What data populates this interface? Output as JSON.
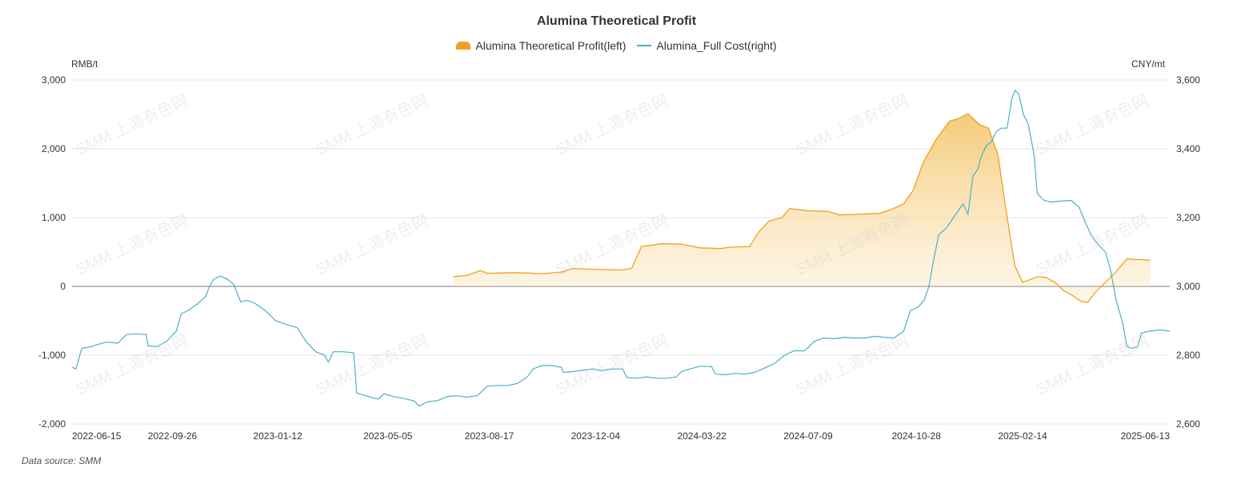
{
  "chart_data": {
    "type": "line",
    "title": "Alumina Theoretical Profit",
    "left_axis_unit": "RMB/t",
    "right_axis_unit": "CNY/mt",
    "left_ylim": [
      -2000,
      3000
    ],
    "right_ylim": [
      2600,
      3600
    ],
    "left_ticks": [
      "3,000",
      "2,000",
      "1,000",
      "0",
      "-1,000",
      "-2,000"
    ],
    "right_ticks": [
      "3,600",
      "3,400",
      "3,200",
      "3,000",
      "2,800",
      "2,600"
    ],
    "x_ticks": [
      "2022-06-15",
      "2022-09-26",
      "2023-01-12",
      "2023-05-05",
      "2023-08-17",
      "2023-12-04",
      "2024-03-22",
      "2024-07-09",
      "2024-10-28",
      "2025-02-14",
      "2025-06-13"
    ],
    "x_range": [
      "2022-06-15",
      "2025-07-15"
    ],
    "grid": true,
    "legend_position": "top-center",
    "series": [
      {
        "name": "Alumina Theoretical Profit(left)",
        "axis": "left",
        "style": "area",
        "color": "#f0a020",
        "points": [
          [
            "2023-07-11",
            140
          ],
          [
            "2023-07-25",
            160
          ],
          [
            "2023-08-08",
            230
          ],
          [
            "2023-08-15",
            190
          ],
          [
            "2023-09-15",
            200
          ],
          [
            "2023-10-11",
            185
          ],
          [
            "2023-10-31",
            210
          ],
          [
            "2023-11-10",
            260
          ],
          [
            "2023-12-08",
            245
          ],
          [
            "2024-01-01",
            240
          ],
          [
            "2024-01-10",
            260
          ],
          [
            "2024-01-20",
            580
          ],
          [
            "2024-02-10",
            620
          ],
          [
            "2024-03-01",
            615
          ],
          [
            "2024-03-20",
            560
          ],
          [
            "2024-04-10",
            550
          ],
          [
            "2024-04-20",
            570
          ],
          [
            "2024-05-10",
            580
          ],
          [
            "2024-05-20",
            800
          ],
          [
            "2024-05-30",
            950
          ],
          [
            "2024-06-12",
            1000
          ],
          [
            "2024-06-20",
            1130
          ],
          [
            "2024-07-09",
            1100
          ],
          [
            "2024-07-30",
            1090
          ],
          [
            "2024-08-10",
            1040
          ],
          [
            "2024-09-01",
            1050
          ],
          [
            "2024-09-20",
            1060
          ],
          [
            "2024-10-01",
            1110
          ],
          [
            "2024-10-15",
            1200
          ],
          [
            "2024-10-25",
            1400
          ],
          [
            "2024-11-04",
            1800
          ],
          [
            "2024-11-18",
            2150
          ],
          [
            "2024-12-01",
            2400
          ],
          [
            "2024-12-10",
            2440
          ],
          [
            "2024-12-20",
            2510
          ],
          [
            "2025-01-01",
            2350
          ],
          [
            "2025-01-10",
            2300
          ],
          [
            "2025-01-20",
            1900
          ],
          [
            "2025-01-27",
            1200
          ],
          [
            "2025-02-06",
            300
          ],
          [
            "2025-02-14",
            60
          ],
          [
            "2025-02-20",
            90
          ],
          [
            "2025-03-01",
            140
          ],
          [
            "2025-03-10",
            130
          ],
          [
            "2025-03-20",
            50
          ],
          [
            "2025-03-28",
            -60
          ],
          [
            "2025-04-05",
            -120
          ],
          [
            "2025-04-15",
            -220
          ],
          [
            "2025-04-22",
            -230
          ],
          [
            "2025-04-30",
            -80
          ],
          [
            "2025-05-10",
            60
          ],
          [
            "2025-05-20",
            200
          ],
          [
            "2025-06-01",
            400
          ],
          [
            "2025-06-13",
            390
          ],
          [
            "2025-06-25",
            380
          ]
        ]
      },
      {
        "name": "Alumina_Full Cost(right)",
        "axis": "right",
        "style": "line",
        "color": "#4ab0c8",
        "points": [
          [
            "2022-06-15",
            2765
          ],
          [
            "2022-06-19",
            2760
          ],
          [
            "2022-06-25",
            2820
          ],
          [
            "2022-07-05",
            2825
          ],
          [
            "2022-07-10",
            2830
          ],
          [
            "2022-07-20",
            2838
          ],
          [
            "2022-08-01",
            2835
          ],
          [
            "2022-08-10",
            2860
          ],
          [
            "2022-08-20",
            2862
          ],
          [
            "2022-08-30",
            2860
          ],
          [
            "2022-09-01",
            2827
          ],
          [
            "2022-09-10",
            2825
          ],
          [
            "2022-09-20",
            2840
          ],
          [
            "2022-09-30",
            2870
          ],
          [
            "2022-10-05",
            2920
          ],
          [
            "2022-10-12",
            2930
          ],
          [
            "2022-10-22",
            2950
          ],
          [
            "2022-10-30",
            2970
          ],
          [
            "2022-11-03",
            3000
          ],
          [
            "2022-11-07",
            3020
          ],
          [
            "2022-11-14",
            3030
          ],
          [
            "2022-11-22",
            3020
          ],
          [
            "2022-11-28",
            3005
          ],
          [
            "2022-12-05",
            2955
          ],
          [
            "2022-12-12",
            2960
          ],
          [
            "2022-12-20",
            2950
          ],
          [
            "2022-12-30",
            2930
          ],
          [
            "2023-01-10",
            2900
          ],
          [
            "2023-01-20",
            2890
          ],
          [
            "2023-02-01",
            2880
          ],
          [
            "2023-02-10",
            2840
          ],
          [
            "2023-02-20",
            2810
          ],
          [
            "2023-03-01",
            2800
          ],
          [
            "2023-03-05",
            2780
          ],
          [
            "2023-03-10",
            2810
          ],
          [
            "2023-03-20",
            2810
          ],
          [
            "2023-03-31",
            2807
          ],
          [
            "2023-04-03",
            2690
          ],
          [
            "2023-04-15",
            2680
          ],
          [
            "2023-04-25",
            2672
          ],
          [
            "2023-05-01",
            2688
          ],
          [
            "2023-05-10",
            2680
          ],
          [
            "2023-05-20",
            2675
          ],
          [
            "2023-06-01",
            2667
          ],
          [
            "2023-06-06",
            2652
          ],
          [
            "2023-06-15",
            2665
          ],
          [
            "2023-06-25",
            2668
          ],
          [
            "2023-07-05",
            2680
          ],
          [
            "2023-07-15",
            2682
          ],
          [
            "2023-07-25",
            2678
          ],
          [
            "2023-08-05",
            2683
          ],
          [
            "2023-08-15",
            2710
          ],
          [
            "2023-08-25",
            2712
          ],
          [
            "2023-09-05",
            2712
          ],
          [
            "2023-09-15",
            2718
          ],
          [
            "2023-09-25",
            2737
          ],
          [
            "2023-10-01",
            2760
          ],
          [
            "2023-10-10",
            2770
          ],
          [
            "2023-10-20",
            2770
          ],
          [
            "2023-10-30",
            2765
          ],
          [
            "2023-11-01",
            2750
          ],
          [
            "2023-11-10",
            2752
          ],
          [
            "2023-11-20",
            2756
          ],
          [
            "2023-12-01",
            2760
          ],
          [
            "2023-12-10",
            2755
          ],
          [
            "2023-12-20",
            2760
          ],
          [
            "2024-01-01",
            2760
          ],
          [
            "2024-01-05",
            2735
          ],
          [
            "2024-01-15",
            2733
          ],
          [
            "2024-01-25",
            2737
          ],
          [
            "2024-02-05",
            2733
          ],
          [
            "2024-02-15",
            2733
          ],
          [
            "2024-02-25",
            2737
          ],
          [
            "2024-03-01",
            2752
          ],
          [
            "2024-03-10",
            2760
          ],
          [
            "2024-03-20",
            2768
          ],
          [
            "2024-04-01",
            2767
          ],
          [
            "2024-04-05",
            2745
          ],
          [
            "2024-04-15",
            2743
          ],
          [
            "2024-04-25",
            2747
          ],
          [
            "2024-05-05",
            2745
          ],
          [
            "2024-05-15",
            2750
          ],
          [
            "2024-05-25",
            2762
          ],
          [
            "2024-06-05",
            2777
          ],
          [
            "2024-06-15",
            2800
          ],
          [
            "2024-06-25",
            2813
          ],
          [
            "2024-07-05",
            2812
          ],
          [
            "2024-07-10",
            2825
          ],
          [
            "2024-07-15",
            2840
          ],
          [
            "2024-07-25",
            2850
          ],
          [
            "2024-08-05",
            2848
          ],
          [
            "2024-08-15",
            2852
          ],
          [
            "2024-08-25",
            2850
          ],
          [
            "2024-09-05",
            2850
          ],
          [
            "2024-09-15",
            2855
          ],
          [
            "2024-09-25",
            2852
          ],
          [
            "2024-10-05",
            2850
          ],
          [
            "2024-10-15",
            2870
          ],
          [
            "2024-10-22",
            2930
          ],
          [
            "2024-10-30",
            2940
          ],
          [
            "2024-11-05",
            2960
          ],
          [
            "2024-11-10",
            3000
          ],
          [
            "2024-11-15",
            3080
          ],
          [
            "2024-11-20",
            3150
          ],
          [
            "2024-11-28",
            3170
          ],
          [
            "2024-12-05",
            3200
          ],
          [
            "2024-12-10",
            3220
          ],
          [
            "2024-12-15",
            3240
          ],
          [
            "2024-12-20",
            3210
          ],
          [
            "2024-12-25",
            3320
          ],
          [
            "2024-12-30",
            3340
          ],
          [
            "2025-01-03",
            3380
          ],
          [
            "2025-01-08",
            3410
          ],
          [
            "2025-01-13",
            3420
          ],
          [
            "2025-01-18",
            3450
          ],
          [
            "2025-01-23",
            3460
          ],
          [
            "2025-01-29",
            3460
          ],
          [
            "2025-02-01",
            3510
          ],
          [
            "2025-02-03",
            3545
          ],
          [
            "2025-02-06",
            3570
          ],
          [
            "2025-02-10",
            3560
          ],
          [
            "2025-02-15",
            3500
          ],
          [
            "2025-02-20",
            3470
          ],
          [
            "2025-02-26",
            3380
          ],
          [
            "2025-03-01",
            3270
          ],
          [
            "2025-03-08",
            3250
          ],
          [
            "2025-03-15",
            3245
          ],
          [
            "2025-03-25",
            3248
          ],
          [
            "2025-04-05",
            3250
          ],
          [
            "2025-04-13",
            3230
          ],
          [
            "2025-04-18",
            3195
          ],
          [
            "2025-04-25",
            3150
          ],
          [
            "2025-05-03",
            3120
          ],
          [
            "2025-05-10",
            3100
          ],
          [
            "2025-05-15",
            3050
          ],
          [
            "2025-05-21",
            2960
          ],
          [
            "2025-05-28",
            2890
          ],
          [
            "2025-06-01",
            2825
          ],
          [
            "2025-06-07",
            2820
          ],
          [
            "2025-06-12",
            2825
          ],
          [
            "2025-06-16",
            2865
          ],
          [
            "2025-06-25",
            2870
          ],
          [
            "2025-07-05",
            2874
          ],
          [
            "2025-07-15",
            2870
          ]
        ]
      }
    ]
  },
  "footer": {
    "source": "Data source:  SMM"
  },
  "watermark": {
    "text": "SMM 上海有色网"
  }
}
